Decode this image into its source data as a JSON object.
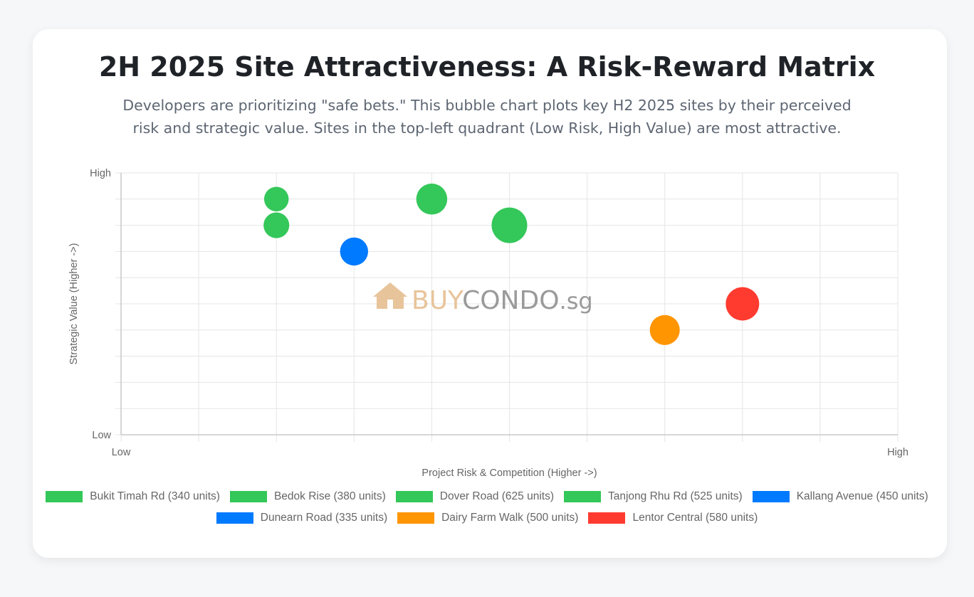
{
  "title": "2H 2025 Site Attractiveness: A Risk-Reward Matrix",
  "subtitle": "Developers are prioritizing \"safe bets.\" This bubble chart plots key H2 2025 sites by their perceived risk and strategic value. Sites in the top-left quadrant (Low Risk, High Value) are most attractive.",
  "watermark": {
    "part1": "BUY",
    "part2": "CONDO",
    "part3": ".sg"
  },
  "chart_data": {
    "type": "scatter",
    "subtype": "bubble",
    "xlabel": "Project Risk & Competition (Higher ->)",
    "ylabel": "Strategic Value (Higher ->)",
    "x_ticks": [
      {
        "value": 0,
        "label": "Low"
      },
      {
        "value": 10,
        "label": "High"
      }
    ],
    "y_ticks": [
      {
        "value": 0,
        "label": "Low"
      },
      {
        "value": 10,
        "label": "High"
      }
    ],
    "xlim": [
      0,
      10
    ],
    "ylim": [
      0,
      10
    ],
    "grid": true,
    "legend_position": "bottom",
    "series": [
      {
        "name": "Bukit Timah Rd (340 units)",
        "color": "#34c759",
        "x": 2,
        "y": 9,
        "units": 340
      },
      {
        "name": "Bedok Rise (380 units)",
        "color": "#34c759",
        "x": 2,
        "y": 8,
        "units": 380
      },
      {
        "name": "Dover Road (625 units)",
        "color": "#34c759",
        "x": 5,
        "y": 8,
        "units": 625
      },
      {
        "name": "Tanjong Rhu Rd (525 units)",
        "color": "#34c759",
        "x": 4,
        "y": 9,
        "units": 525
      },
      {
        "name": "Kallang Avenue (450 units)",
        "color": "#007aff",
        "x": 3,
        "y": 7,
        "units": 450
      },
      {
        "name": "Dunearn Road (335 units)",
        "color": "#007aff",
        "x": null,
        "y": null,
        "units": 335
      },
      {
        "name": "Dairy Farm Walk (500 units)",
        "color": "#ff9500",
        "x": 7,
        "y": 4,
        "units": 500
      },
      {
        "name": "Lentor Central (580 units)",
        "color": "#ff3b30",
        "x": 8,
        "y": 5,
        "units": 580
      }
    ]
  }
}
